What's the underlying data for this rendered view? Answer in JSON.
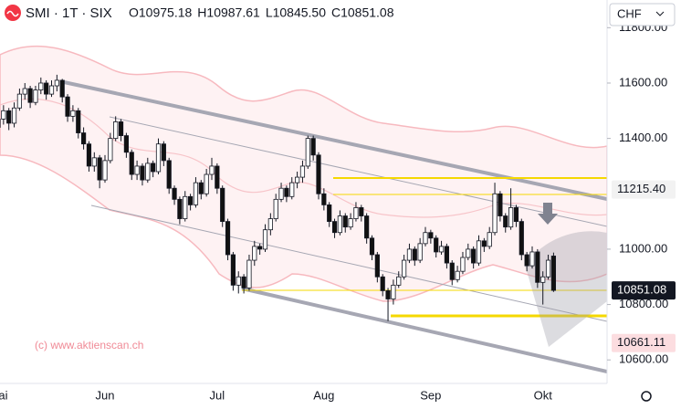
{
  "chart_data": {
    "type": "candlestick",
    "symbol": "SMI · 1T · SIX",
    "ohlc_header": [
      "O10975.18",
      "H10987.61",
      "L10845.50",
      "C10851.08"
    ],
    "currency": "CHF",
    "watermark": "(c) www.aktienscan.ch",
    "up_color": "#ffffff",
    "down_color": "#111111",
    "categories": [
      "Mai",
      null,
      null,
      null,
      null,
      null,
      null,
      null,
      null,
      null,
      null,
      null,
      null,
      null,
      null,
      null,
      null,
      null,
      null,
      null,
      "Jun",
      null,
      null,
      null,
      null,
      null,
      null,
      null,
      null,
      null,
      null,
      null,
      null,
      null,
      null,
      null,
      null,
      null,
      null,
      null,
      null,
      "Jul",
      null,
      null,
      null,
      null,
      null,
      null,
      null,
      null,
      null,
      null,
      null,
      null,
      null,
      null,
      null,
      null,
      null,
      null,
      null,
      "Aug",
      null,
      null,
      null,
      null,
      null,
      null,
      null,
      null,
      null,
      null,
      null,
      null,
      null,
      null,
      null,
      null,
      null,
      null,
      null,
      "Sep",
      null,
      null,
      null,
      null,
      null,
      null,
      null,
      null,
      null,
      null,
      null,
      null,
      null,
      null,
      null,
      null,
      null,
      null,
      null,
      null,
      "Okt"
    ],
    "ohlc": [
      [
        11440,
        11490,
        11420,
        11470
      ],
      [
        11470,
        11520,
        11450,
        11500
      ],
      [
        11500,
        11510,
        11430,
        11455
      ],
      [
        11455,
        11530,
        11440,
        11510
      ],
      [
        11510,
        11580,
        11500,
        11560
      ],
      [
        11560,
        11600,
        11540,
        11580
      ],
      [
        11580,
        11590,
        11510,
        11530
      ],
      [
        11530,
        11590,
        11520,
        11575
      ],
      [
        11575,
        11620,
        11560,
        11600
      ],
      [
        11600,
        11610,
        11540,
        11560
      ],
      [
        11560,
        11610,
        11550,
        11590
      ],
      [
        11590,
        11630,
        11570,
        11610
      ],
      [
        11610,
        11615,
        11530,
        11550
      ],
      [
        11550,
        11560,
        11460,
        11480
      ],
      [
        11480,
        11520,
        11460,
        11500
      ],
      [
        11500,
        11510,
        11400,
        11420
      ],
      [
        11420,
        11440,
        11360,
        11380
      ],
      [
        11380,
        11390,
        11280,
        11300
      ],
      [
        11300,
        11350,
        11280,
        11330
      ],
      [
        11330,
        11340,
        11220,
        11250
      ],
      [
        11250,
        11340,
        11240,
        11320
      ],
      [
        11320,
        11420,
        11310,
        11400
      ],
      [
        11400,
        11480,
        11390,
        11460
      ],
      [
        11460,
        11470,
        11390,
        11410
      ],
      [
        11410,
        11420,
        11330,
        11350
      ],
      [
        11350,
        11360,
        11250,
        11270
      ],
      [
        11270,
        11320,
        11250,
        11300
      ],
      [
        11300,
        11310,
        11230,
        11250
      ],
      [
        11250,
        11330,
        11240,
        11310
      ],
      [
        11310,
        11320,
        11260,
        11280
      ],
      [
        11280,
        11400,
        11270,
        11380
      ],
      [
        11380,
        11390,
        11300,
        11320
      ],
      [
        11320,
        11330,
        11200,
        11220
      ],
      [
        11220,
        11230,
        11160,
        11180
      ],
      [
        11180,
        11190,
        11090,
        11110
      ],
      [
        11110,
        11210,
        11100,
        11190
      ],
      [
        11190,
        11200,
        11140,
        11160
      ],
      [
        11160,
        11260,
        11150,
        11240
      ],
      [
        11240,
        11250,
        11180,
        11200
      ],
      [
        11200,
        11290,
        11190,
        11270
      ],
      [
        11270,
        11330,
        11250,
        11300
      ],
      [
        11300,
        11310,
        11200,
        11220
      ],
      [
        11220,
        11230,
        11080,
        11100
      ],
      [
        11100,
        11110,
        10960,
        10980
      ],
      [
        10980,
        10990,
        10850,
        10870
      ],
      [
        10870,
        10920,
        10840,
        10900
      ],
      [
        10900,
        10910,
        10840,
        10860
      ],
      [
        10860,
        10980,
        10850,
        10960
      ],
      [
        10960,
        11030,
        10940,
        11010
      ],
      [
        11010,
        11020,
        10980,
        11000
      ],
      [
        11000,
        11090,
        10990,
        11070
      ],
      [
        11070,
        11130,
        11050,
        11110
      ],
      [
        11110,
        11200,
        11100,
        11180
      ],
      [
        11180,
        11240,
        11170,
        11220
      ],
      [
        11220,
        11230,
        11170,
        11190
      ],
      [
        11190,
        11260,
        11180,
        11240
      ],
      [
        11240,
        11280,
        11220,
        11260
      ],
      [
        11260,
        11320,
        11240,
        11300
      ],
      [
        11300,
        11410,
        11290,
        11400
      ],
      [
        11400,
        11410,
        11320,
        11340
      ],
      [
        11340,
        11350,
        11180,
        11200
      ],
      [
        11200,
        11220,
        11140,
        11160
      ],
      [
        11160,
        11170,
        11080,
        11100
      ],
      [
        11100,
        11110,
        11040,
        11060
      ],
      [
        11060,
        11140,
        11050,
        11120
      ],
      [
        11120,
        11130,
        11060,
        11080
      ],
      [
        11080,
        11130,
        11070,
        11110
      ],
      [
        11110,
        11170,
        11100,
        11150
      ],
      [
        11150,
        11160,
        11100,
        11120
      ],
      [
        11120,
        11130,
        11020,
        11040
      ],
      [
        11040,
        11050,
        10960,
        10980
      ],
      [
        10980,
        10990,
        10880,
        10900
      ],
      [
        10900,
        10910,
        10830,
        10850
      ],
      [
        10850,
        10860,
        10740,
        10820
      ],
      [
        10820,
        10890,
        10800,
        10870
      ],
      [
        10870,
        10920,
        10860,
        10900
      ],
      [
        10900,
        10980,
        10890,
        10960
      ],
      [
        10960,
        11020,
        10950,
        11000
      ],
      [
        11000,
        11010,
        10940,
        10960
      ],
      [
        10960,
        11040,
        10950,
        11020
      ],
      [
        11020,
        11080,
        11010,
        11060
      ],
      [
        11060,
        11070,
        11020,
        11040
      ],
      [
        11040,
        11050,
        10970,
        10990
      ],
      [
        10990,
        11030,
        10980,
        11010
      ],
      [
        11010,
        11020,
        10930,
        10950
      ],
      [
        10950,
        10960,
        10870,
        10890
      ],
      [
        10890,
        10940,
        10880,
        10920
      ],
      [
        10920,
        10990,
        10910,
        10970
      ],
      [
        10970,
        11020,
        10960,
        11000
      ],
      [
        11000,
        11010,
        10930,
        10950
      ],
      [
        10950,
        11050,
        10940,
        11030
      ],
      [
        11030,
        11040,
        10990,
        11010
      ],
      [
        11010,
        11080,
        11000,
        11060
      ],
      [
        11060,
        11240,
        11050,
        11200
      ],
      [
        11200,
        11210,
        11100,
        11120
      ],
      [
        11120,
        11130,
        11060,
        11080
      ],
      [
        11080,
        11220,
        11070,
        11150
      ],
      [
        11150,
        11160,
        11080,
        11100
      ],
      [
        11100,
        11110,
        10960,
        10980
      ],
      [
        10980,
        10990,
        10920,
        10940
      ],
      [
        10940,
        11010,
        10930,
        10990
      ],
      [
        10990,
        11000,
        10860,
        10880
      ],
      [
        10880,
        10920,
        10800,
        10900
      ],
      [
        10900,
        10980,
        10890,
        10960
      ],
      [
        10975.18,
        10987.61,
        10845.5,
        10851.08
      ]
    ],
    "ylim": [
      10515,
      11900
    ],
    "yticks": [
      {
        "value": 10600,
        "label": "10600.00"
      },
      {
        "value": 10800,
        "label": "10800.00"
      },
      {
        "value": 11000,
        "label": "11000.00"
      },
      {
        "value": 11400,
        "label": "11400.00"
      },
      {
        "value": 11600,
        "label": "11600.00"
      },
      {
        "value": 11800,
        "label": "11800.00"
      }
    ],
    "price_tags": [
      {
        "value": 11215.4,
        "label": "11215.40",
        "color": "#f2f2f2",
        "text_color": "#131722"
      },
      {
        "value": 10851.08,
        "label": "10851.08",
        "color": "#131722",
        "text_color": "#ffffff"
      },
      {
        "value": 10661.11,
        "label": "10661.11",
        "color": "#fcdde0",
        "text_color": "#131722"
      }
    ]
  }
}
